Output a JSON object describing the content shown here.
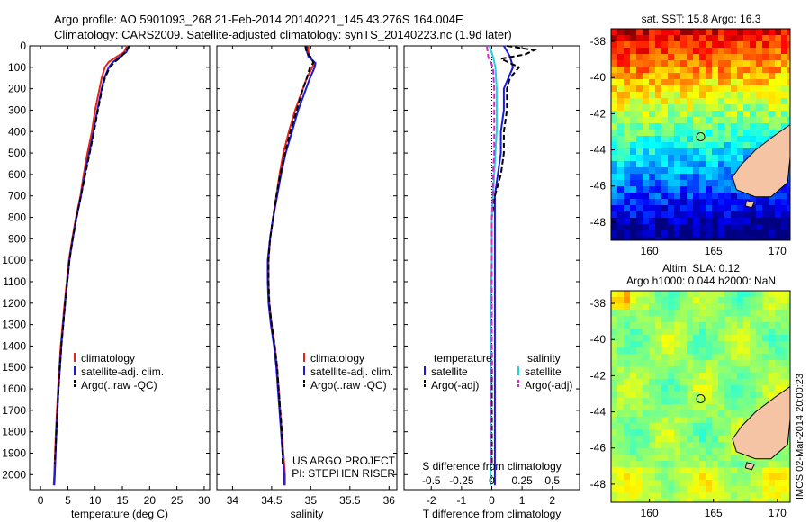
{
  "title": {
    "line1": "Argo profile: AO 5901093_268 21-Feb-2014 20140221_145 43.276S 164.004E",
    "line2": "Climatology: CARS2009. Satellite-adjusted climatology: synTS_20140223.nc (1.9d later)"
  },
  "credit": "IMOS 02-Mar-2014 20:00:23",
  "colors": {
    "climatology": "#e8231b",
    "satellite": "#1a1adb",
    "argo": "#000000",
    "sal_satellite": "#22d0e0",
    "sal_argo": "#d02ad0",
    "land": "#f4c4a4"
  },
  "chart_data": [
    {
      "type": "line",
      "xlabel": "temperature (deg C)",
      "ylabel": "",
      "xlim": [
        -2,
        31
      ],
      "ylim": [
        2070,
        0
      ],
      "xticks": [
        "0",
        "5",
        "10",
        "15",
        "20",
        "25",
        "30"
      ],
      "yticks": [
        "0",
        "100",
        "200",
        "300",
        "400",
        "500",
        "600",
        "700",
        "800",
        "900",
        "1000",
        "1100",
        "1200",
        "1300",
        "1400",
        "1500",
        "1600",
        "1700",
        "1800",
        "1900",
        "2000"
      ],
      "legend": [
        "climatology",
        "satellite-adj. clim.",
        "Argo(..raw -QC)"
      ],
      "legend_position": "lower-center",
      "series": [
        {
          "name": "climatology",
          "style": "solid",
          "depth": [
            0,
            10,
            30,
            50,
            75,
            100,
            150,
            200,
            300,
            400,
            500,
            600,
            700,
            800,
            900,
            1000,
            1200,
            1400,
            1600,
            1800,
            2000,
            2050
          ],
          "values": [
            15.8,
            15.7,
            15.3,
            14.0,
            12.5,
            11.8,
            11.2,
            10.8,
            10.0,
            9.4,
            8.6,
            7.9,
            7.3,
            6.5,
            5.8,
            5.2,
            4.4,
            3.7,
            3.2,
            2.8,
            2.5,
            2.4
          ]
        },
        {
          "name": "satellite-adj. clim.",
          "style": "solid",
          "depth": [
            0,
            10,
            30,
            50,
            75,
            100,
            150,
            200,
            300,
            400,
            500,
            600,
            700,
            800,
            900,
            1000,
            1200,
            1400,
            1600,
            1800,
            2000,
            2050
          ],
          "values": [
            16.2,
            16.1,
            15.7,
            14.6,
            13.3,
            12.5,
            11.7,
            11.2,
            10.4,
            9.7,
            8.9,
            8.1,
            7.4,
            6.6,
            5.9,
            5.3,
            4.5,
            3.8,
            3.3,
            2.9,
            2.6,
            2.5
          ]
        },
        {
          "name": "Argo(..raw -QC)",
          "style": "dashed",
          "depth": [
            0,
            10,
            30,
            50,
            75,
            100,
            150,
            200,
            300,
            400,
            500,
            600,
            700,
            800,
            900,
            1000,
            1200,
            1400,
            1600,
            1800,
            1950
          ],
          "values": [
            16.3,
            16.0,
            15.5,
            14.8,
            13.6,
            12.7,
            11.8,
            11.3,
            10.5,
            9.8,
            9.0,
            8.2,
            7.4,
            6.6,
            5.9,
            5.3,
            4.5,
            3.8,
            3.3,
            2.9,
            2.6
          ]
        }
      ]
    },
    {
      "type": "line",
      "xlabel": "salinity",
      "xlim": [
        33.8,
        36.1
      ],
      "ylim": [
        2070,
        0
      ],
      "xticks": [
        "34",
        "34.5",
        "35",
        "35.5",
        "36"
      ],
      "legend": [
        "climatology",
        "satellite-adj. clim.",
        "Argo(..raw -QC)"
      ],
      "legend_position": "lower-center",
      "annotation": [
        "US ARGO PROJECT",
        "PI: STEPHEN RISER"
      ],
      "series": [
        {
          "name": "climatology",
          "style": "solid",
          "depth": [
            0,
            25,
            50,
            80,
            100,
            150,
            200,
            300,
            400,
            500,
            600,
            700,
            800,
            900,
            1000,
            1100,
            1200,
            1300,
            1400,
            1500,
            1600,
            1700,
            1800,
            1900,
            2000,
            2050
          ],
          "values": [
            34.97,
            34.97,
            34.98,
            35.05,
            35.02,
            34.95,
            34.9,
            34.8,
            34.72,
            34.65,
            34.6,
            34.56,
            34.52,
            34.48,
            34.46,
            34.46,
            34.47,
            34.5,
            34.54,
            34.57,
            34.59,
            34.61,
            34.63,
            34.65,
            34.67,
            34.67
          ]
        },
        {
          "name": "satellite-adj. clim.",
          "style": "solid",
          "depth": [
            0,
            25,
            50,
            80,
            100,
            150,
            200,
            300,
            400,
            500,
            600,
            700,
            800,
            900,
            1000,
            1100,
            1200,
            1300,
            1400,
            1500,
            1600,
            1700,
            1800,
            1900,
            2000,
            2050
          ],
          "values": [
            34.95,
            34.95,
            34.97,
            35.06,
            35.05,
            34.99,
            34.94,
            34.84,
            34.76,
            34.68,
            34.62,
            34.57,
            34.52,
            34.48,
            34.45,
            34.45,
            34.46,
            34.49,
            34.53,
            34.56,
            34.58,
            34.6,
            34.62,
            34.64,
            34.66,
            34.66
          ]
        },
        {
          "name": "Argo(..raw -QC)",
          "style": "dashed",
          "depth": [
            0,
            20,
            40,
            60,
            80,
            100,
            150,
            200,
            300,
            400,
            500,
            600,
            700,
            800,
            900,
            1000,
            1100,
            1200,
            1300,
            1400,
            1500,
            1600,
            1700,
            1800,
            1900,
            1950
          ],
          "values": [
            34.93,
            34.94,
            34.97,
            35.02,
            35.03,
            34.99,
            34.95,
            34.9,
            34.82,
            34.74,
            34.67,
            34.61,
            34.56,
            34.52,
            34.48,
            34.46,
            34.46,
            34.47,
            34.5,
            34.54,
            34.57,
            34.59,
            34.61,
            34.63,
            34.64,
            34.64
          ]
        }
      ]
    },
    {
      "type": "line",
      "xlabel": "T difference from climatology",
      "xlim": [
        -2.9,
        2.9
      ],
      "ylim": [
        2070,
        0
      ],
      "xticks": [
        "-2",
        "-1",
        "0",
        "1",
        "2"
      ],
      "secondary_xlabel": "S difference from climatology",
      "secondary_xticks": [
        "-0.5",
        "-0.25",
        "0",
        "0.25",
        "0.5"
      ],
      "legend": [
        "temperature",
        "satellite",
        "Argo(-adj)",
        "salinity",
        "satellite",
        "Argo(-adj)"
      ],
      "legend_position": "lower-center",
      "series": [
        {
          "name": "satellite",
          "group": "temperature",
          "style": "solid",
          "depth": [
            0,
            50,
            100,
            200,
            300,
            400,
            500,
            600,
            700,
            800,
            900,
            1000,
            1200,
            1400,
            1600,
            1800,
            2000,
            2050
          ],
          "values": [
            0.4,
            0.6,
            0.7,
            0.4,
            0.4,
            0.3,
            0.3,
            0.2,
            0.1,
            0.1,
            0.1,
            0.1,
            0.1,
            0.1,
            0.1,
            0.1,
            0.1,
            0.1
          ]
        },
        {
          "name": "Argo(-adj)",
          "group": "temperature",
          "style": "dashed",
          "depth": [
            0,
            20,
            40,
            60,
            80,
            100,
            150,
            200,
            300,
            400,
            500,
            600,
            700,
            800,
            900,
            1000,
            1100,
            1200,
            1400,
            1600,
            1800,
            1950
          ],
          "values": [
            0.5,
            1.4,
            1.1,
            0.3,
            0.6,
            0.9,
            0.6,
            0.5,
            0.5,
            0.4,
            0.4,
            0.3,
            0.1,
            0.0,
            0.0,
            0.0,
            0.0,
            0.0,
            0.0,
            0.0,
            0.0,
            0.0
          ]
        },
        {
          "name": "satellite",
          "group": "salinity",
          "style": "solid",
          "depth": [
            0,
            50,
            100,
            200,
            300,
            400,
            500,
            600,
            700,
            800,
            900,
            1000,
            1200,
            1400,
            1600,
            1800,
            2000,
            2050
          ],
          "values": [
            -0.02,
            0.01,
            0.03,
            0.04,
            0.04,
            0.04,
            0.03,
            0.02,
            0.01,
            0.0,
            0.0,
            0.0,
            -0.01,
            -0.01,
            -0.01,
            -0.01,
            -0.01,
            -0.01
          ]
        },
        {
          "name": "Argo(-adj)",
          "group": "salinity",
          "style": "dashed",
          "depth": [
            0,
            50,
            100,
            200,
            300,
            400,
            500,
            600,
            700,
            800,
            900,
            1000,
            1100,
            1200,
            1400,
            1600,
            1800,
            1950
          ],
          "values": [
            -0.04,
            -0.03,
            0.01,
            0.02,
            0.02,
            0.02,
            0.02,
            0.01,
            0.01,
            0.0,
            0.0,
            0.0,
            0.0,
            0.0,
            0.0,
            -0.01,
            -0.01,
            -0.01
          ]
        }
      ]
    },
    {
      "type": "heatmap",
      "title": "sat. SST: 15.8 Argo: 16.3",
      "xlim": [
        157,
        171
      ],
      "ylim": [
        -49,
        -37.3
      ],
      "xticks": [
        "160",
        "165",
        "170"
      ],
      "yticks": [
        "-38",
        "-40",
        "-42",
        "-44",
        "-46",
        "-48"
      ],
      "colormap": "jet",
      "marker": {
        "lon": 164.004,
        "lat": -43.276
      }
    },
    {
      "type": "heatmap",
      "title": [
        "Altim. SLA: 0.12",
        "Argo h1000: 0.044 h2000: NaN"
      ],
      "xlim": [
        157,
        171
      ],
      "ylim": [
        -49,
        -37.3
      ],
      "xticks": [
        "160",
        "165",
        "170"
      ],
      "yticks": [
        "-38",
        "-40",
        "-42",
        "-44",
        "-46",
        "-48"
      ],
      "colormap": "jet",
      "marker": {
        "lon": 164.004,
        "lat": -43.276
      }
    }
  ]
}
